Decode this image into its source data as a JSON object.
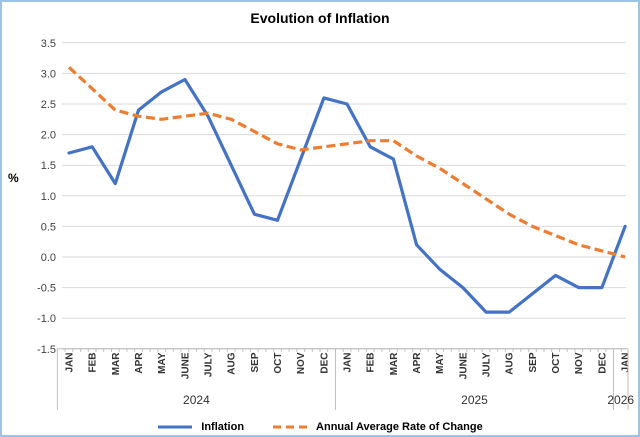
{
  "colors": {
    "border": "#9DC3E6",
    "grid": "#D9D9D9",
    "axis": "#BFBFBF",
    "text": "#404040",
    "title": "#000000",
    "inflation_line": "#4472C4",
    "annual_avg_line": "#ED7D31"
  },
  "chart_data": {
    "type": "line",
    "title": "Evolution of Inflation",
    "ylabel": "%",
    "ylim": [
      -1.5,
      3.5
    ],
    "ytick_step": 0.5,
    "y_ticks": [
      "3.5",
      "3.0",
      "2.5",
      "2.0",
      "1.5",
      "1.0",
      "0.5",
      "0.0",
      "-0.5",
      "-1.0",
      "-1.5"
    ],
    "grid": true,
    "legend_position": "bottom",
    "year_groups": [
      {
        "label": "2024",
        "months": [
          "JAN",
          "FEB",
          "MAR",
          "APR",
          "MAY",
          "JUNE",
          "JULY",
          "AUG",
          "SEP",
          "OCT",
          "NOV",
          "DEC"
        ]
      },
      {
        "label": "2025",
        "months": [
          "JAN",
          "FEB",
          "MAR",
          "APR",
          "MAY",
          "JUNE",
          "JULY",
          "AUG",
          "SEP",
          "OCT",
          "NOV",
          "DEC"
        ]
      },
      {
        "label": "2026",
        "months": [
          "JAN"
        ]
      }
    ],
    "series": [
      {
        "id": "inflation",
        "name": "Inflation",
        "color": "#4472C4",
        "style": "solid",
        "values": [
          1.7,
          1.8,
          1.2,
          2.4,
          2.7,
          2.9,
          2.3,
          1.5,
          0.7,
          0.6,
          1.6,
          2.6,
          2.5,
          1.8,
          1.6,
          0.2,
          -0.2,
          -0.5,
          -0.9,
          -0.9,
          -0.6,
          -0.3,
          -0.5,
          -0.5,
          0.5
        ]
      },
      {
        "id": "annual-average",
        "name": "Annual Average Rate of Change",
        "color": "#ED7D31",
        "style": "dashed",
        "values": [
          3.1,
          2.75,
          2.4,
          2.3,
          2.25,
          2.3,
          2.35,
          2.25,
          2.05,
          1.85,
          1.75,
          1.8,
          1.85,
          1.9,
          1.9,
          1.65,
          1.45,
          1.2,
          0.95,
          0.7,
          0.5,
          0.35,
          0.2,
          0.1,
          0.0
        ]
      }
    ]
  }
}
